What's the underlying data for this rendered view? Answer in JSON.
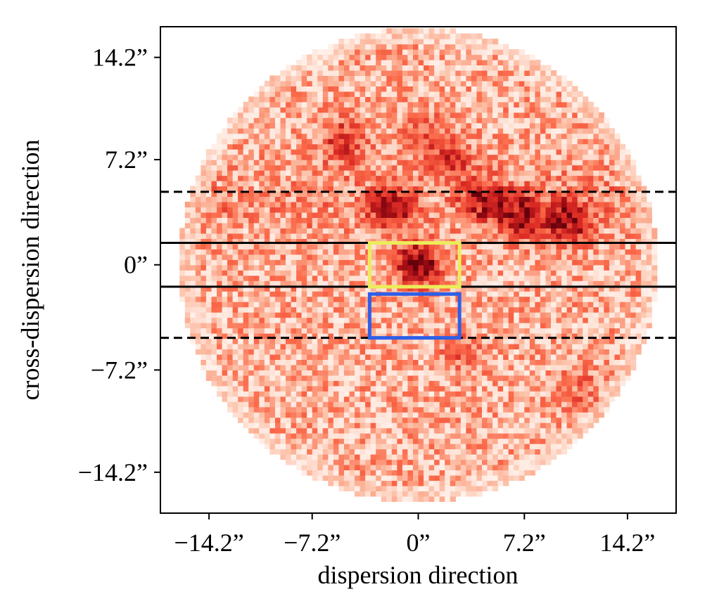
{
  "chart_data": {
    "type": "heatmap",
    "title": "",
    "xlabel": "dispersion direction",
    "ylabel": "cross-dispersion direction",
    "xlim": [
      -17.5,
      17.5
    ],
    "ylim": [
      -17.0,
      16.3
    ],
    "x_ticks": [
      {
        "value": -14.2,
        "label": "−14.2”"
      },
      {
        "value": -7.2,
        "label": "−7.2”"
      },
      {
        "value": 0,
        "label": "0”"
      },
      {
        "value": 7.2,
        "label": "7.2”"
      },
      {
        "value": 14.2,
        "label": "14.2”"
      }
    ],
    "y_ticks": [
      {
        "value": 14.2,
        "label": "14.2”"
      },
      {
        "value": 7.2,
        "label": "7.2”"
      },
      {
        "value": 0,
        "label": "0”"
      },
      {
        "value": -7.2,
        "label": "−7.2”"
      },
      {
        "value": -14.2,
        "label": "−14.2”"
      }
    ],
    "field": {
      "shape": "circle",
      "center": [
        0,
        0
      ],
      "radius": 16.2
    },
    "colormap": "Reds",
    "hotspots": [
      {
        "x": 0.0,
        "y": 0.0,
        "intensity": 1.0
      },
      {
        "x": 10.1,
        "y": 3.0,
        "intensity": 0.9
      },
      {
        "x": 7.0,
        "y": 3.4,
        "intensity": 0.75
      },
      {
        "x": 4.5,
        "y": 4.4,
        "intensity": 0.7
      },
      {
        "x": -1.9,
        "y": 4.0,
        "intensity": 0.8
      },
      {
        "x": -5.0,
        "y": 8.5,
        "intensity": 0.55
      },
      {
        "x": 2.2,
        "y": 7.2,
        "intensity": 0.5
      },
      {
        "x": 0.5,
        "y": 9.0,
        "intensity": 0.35
      },
      {
        "x": 11.0,
        "y": -8.5,
        "intensity": 0.3
      },
      {
        "x": 3.0,
        "y": -6.0,
        "intensity": 0.25
      }
    ],
    "horizontal_lines": [
      {
        "y": 1.5,
        "style": "solid",
        "color": "#000000"
      },
      {
        "y": -1.5,
        "style": "solid",
        "color": "#000000"
      },
      {
        "y": 5.0,
        "style": "dashed",
        "color": "#000000"
      },
      {
        "y": -5.0,
        "style": "dashed",
        "color": "#000000"
      }
    ],
    "rectangles": [
      {
        "x0": -3.3,
        "x1": 2.8,
        "y0": -1.5,
        "y1": 1.5,
        "color": "#ecec5a"
      },
      {
        "x0": -3.3,
        "x1": 2.8,
        "y0": -5.0,
        "y1": -2.0,
        "color": "#2f5fe8"
      }
    ]
  }
}
